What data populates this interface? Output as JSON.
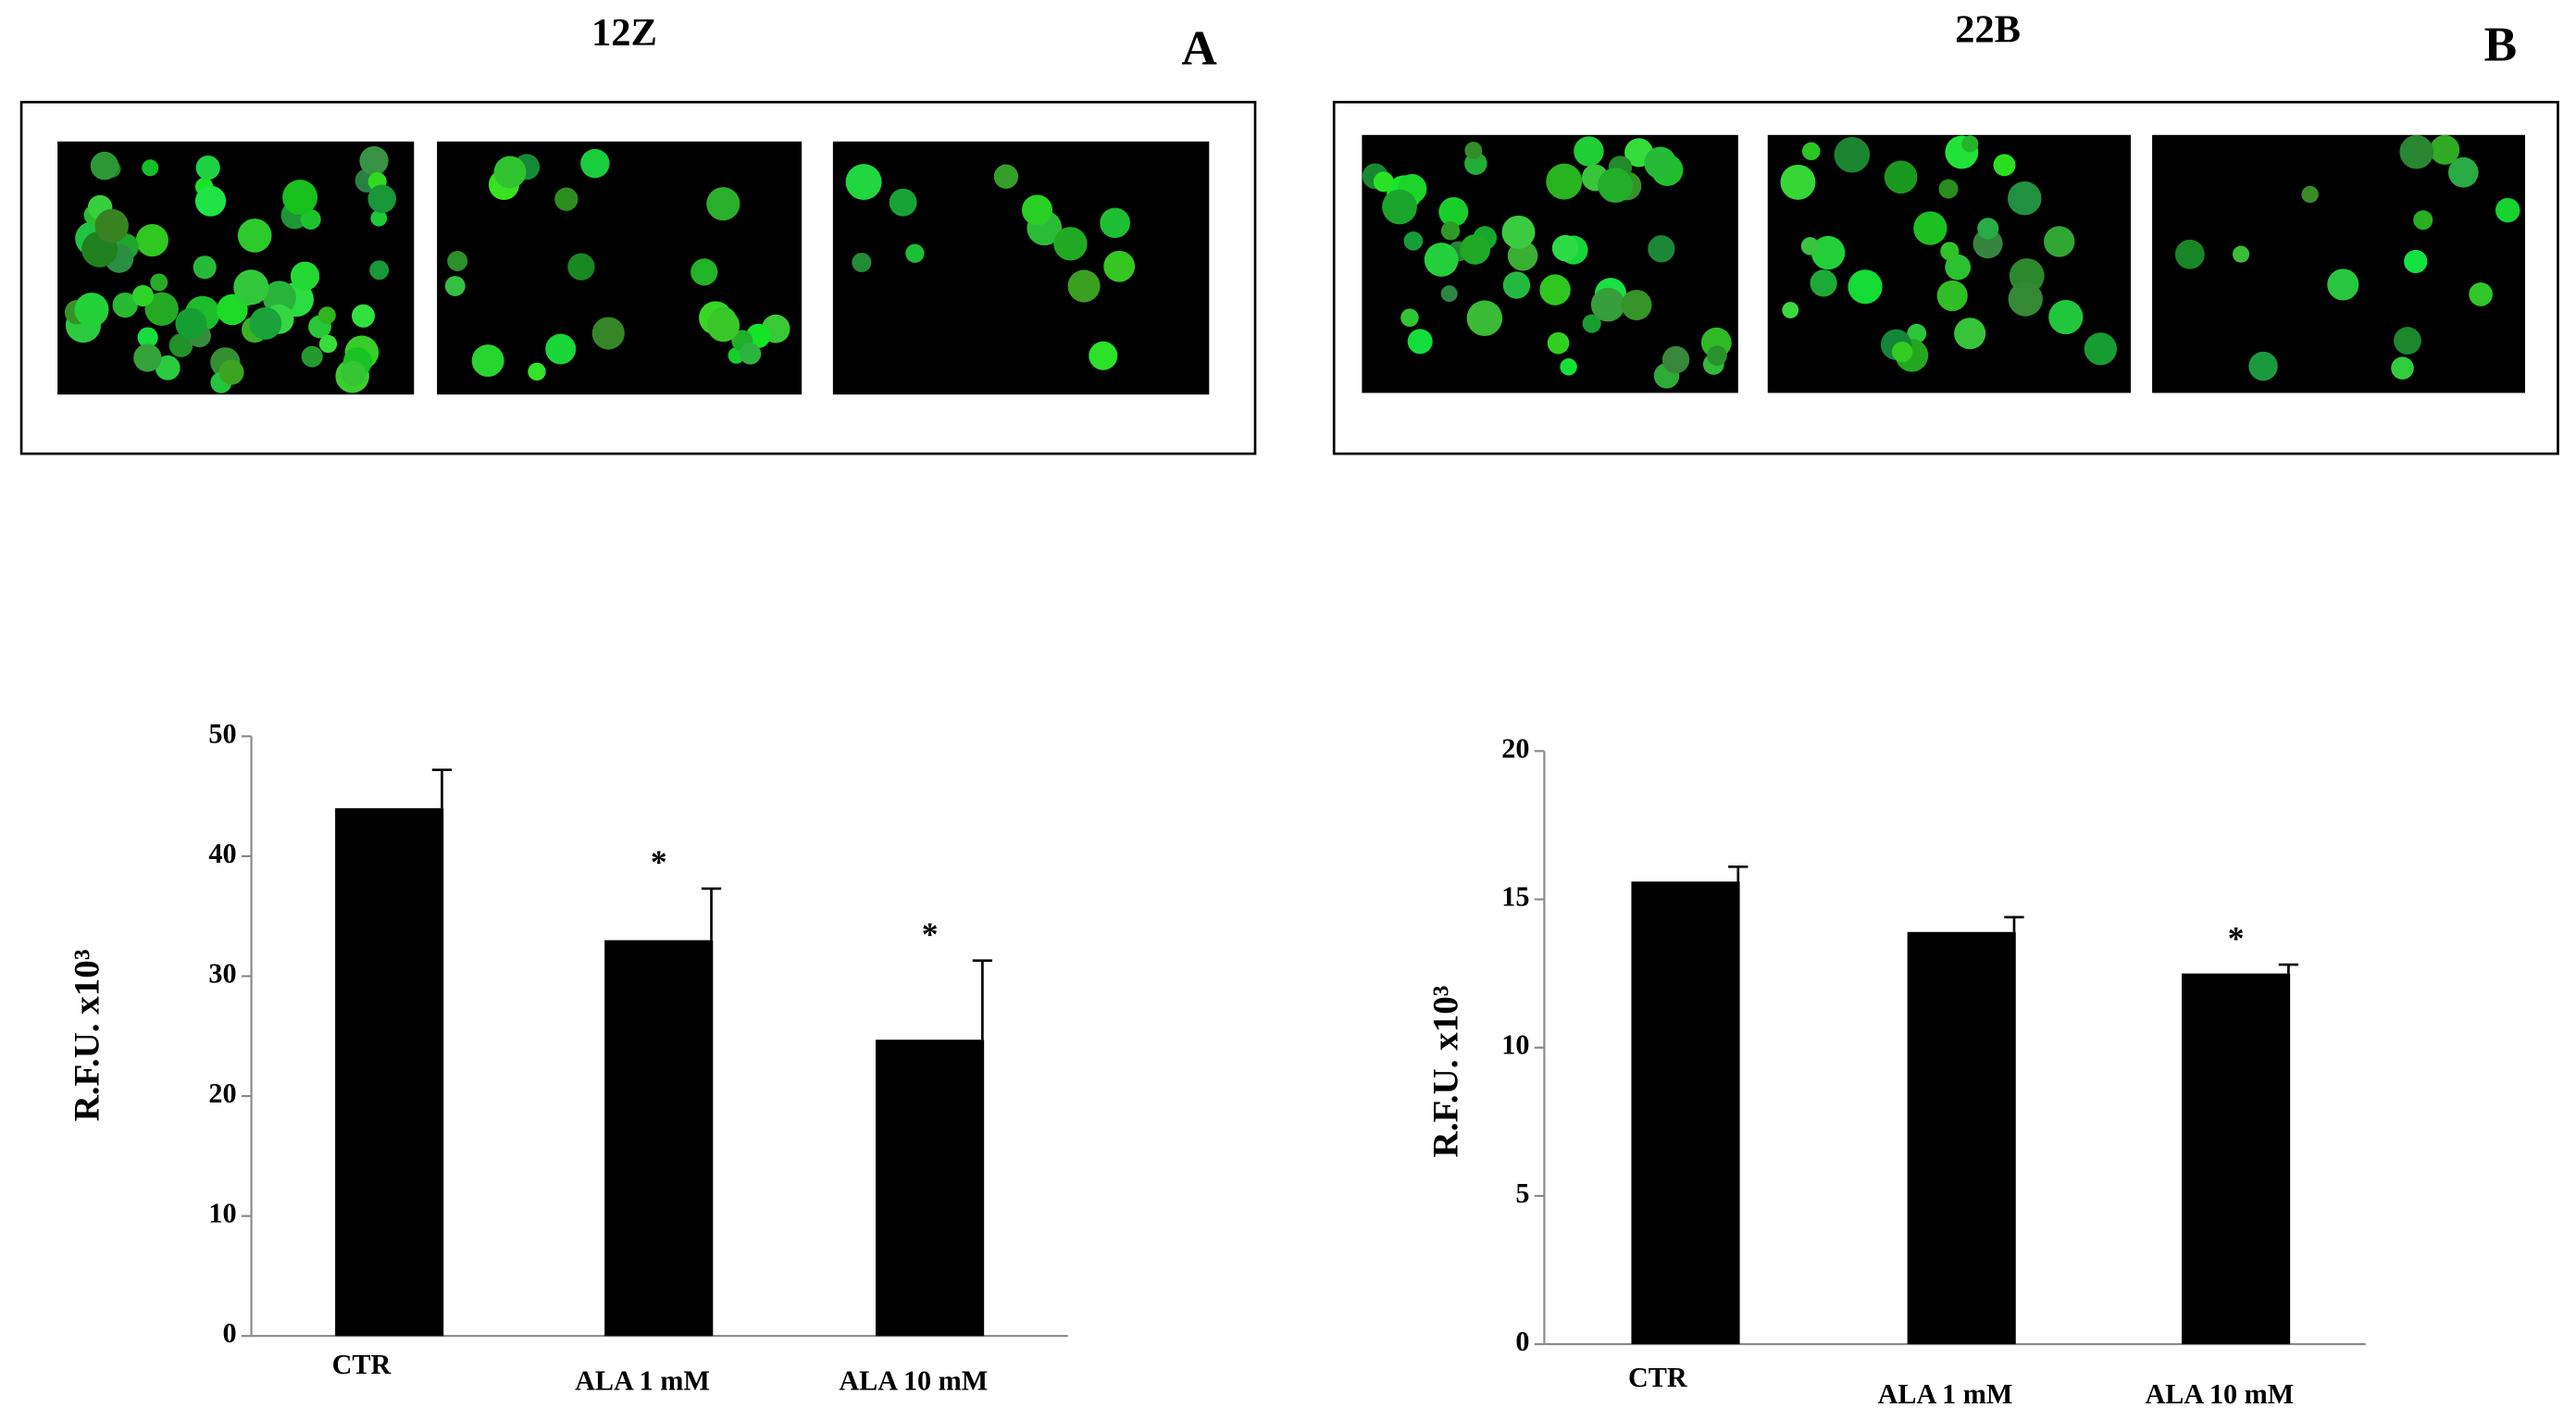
{
  "chart_data": [
    {
      "type": "bar",
      "title": "12Z",
      "panel_label": "A",
      "y_label": "R.F.U. x10³",
      "categories": [
        "CTR",
        "ALA  1 mM",
        "ALA  10 mM"
      ],
      "values": [
        44,
        33,
        24.7
      ],
      "errors": [
        3.2,
        4.3,
        6.6
      ],
      "value_annotations": [
        null,
        "*",
        "*"
      ],
      "color": "#000000",
      "ylim": [
        0,
        50
      ],
      "yticks": [
        0,
        10,
        20,
        30,
        40,
        50
      ],
      "grid": false
    },
    {
      "type": "bar",
      "title": "22B",
      "panel_label": "B",
      "y_label": "R.F.U. x10³",
      "categories": [
        "CTR",
        "ALA  1 mM",
        "ALA  10 mM"
      ],
      "values": [
        15.6,
        13.9,
        12.5
      ],
      "errors": [
        0.5,
        0.5,
        0.3
      ],
      "value_annotations": [
        null,
        null,
        "*"
      ],
      "color": "#000000",
      "ylim": [
        0,
        20
      ],
      "yticks": [
        0,
        5,
        10,
        15,
        20
      ],
      "grid": false
    }
  ]
}
